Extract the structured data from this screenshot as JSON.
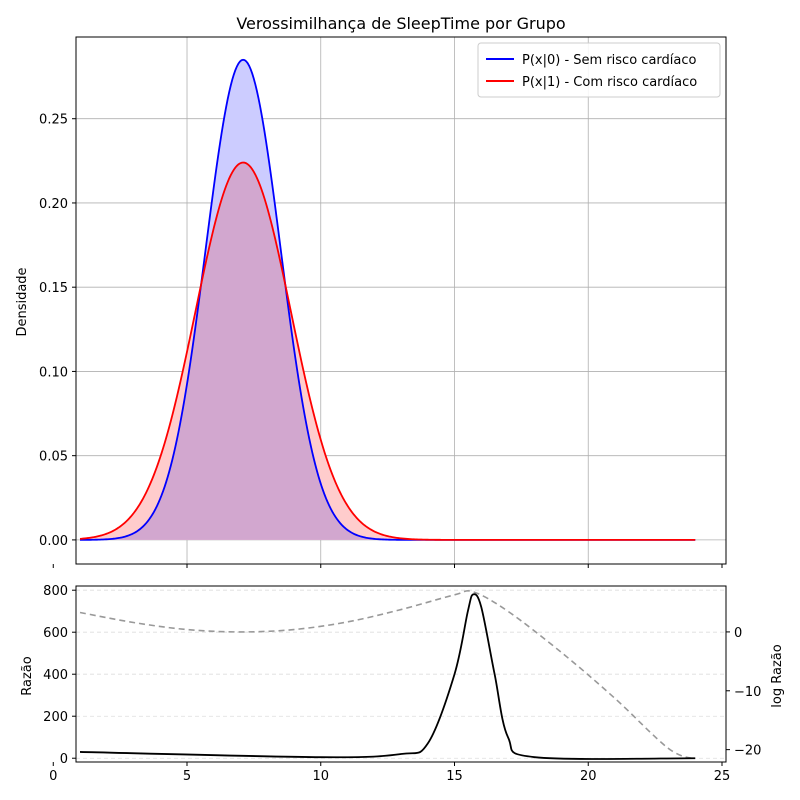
{
  "chart_data": [
    {
      "type": "area",
      "title": "Verossimilhança de SleepTime por Grupo",
      "xlabel": "",
      "ylabel": "Densidade",
      "xlim": [
        0.85,
        25.15
      ],
      "ylim": [
        -0.0143,
        0.2985
      ],
      "xticks": [
        0,
        5,
        10,
        15,
        20,
        25
      ],
      "xtick_labels": [
        "",
        "",
        "",
        "",
        "",
        ""
      ],
      "yticks": [
        0.0,
        0.05,
        0.1,
        0.15,
        0.2,
        0.25
      ],
      "ytick_labels": [
        "0.00",
        "0.05",
        "0.10",
        "0.15",
        "0.20",
        "0.25"
      ],
      "grid": true,
      "legend_position": "top-right",
      "x_range": [
        1,
        24
      ],
      "series": [
        {
          "name": "P(x|0) - Sem risco cardíaco",
          "distribution": "normal",
          "mean": 7.1,
          "std": 1.4,
          "peak": 0.285,
          "color": "#0000ff",
          "fill": "#ccccff"
        },
        {
          "name": "P(x|1) - Com risco cardíaco",
          "distribution": "normal",
          "mean": 7.1,
          "std": 1.78,
          "peak": 0.224,
          "color": "#ff0000",
          "fill": "#ffcccc"
        }
      ],
      "overlap_fill": "#d2a7cf"
    },
    {
      "type": "line",
      "xlabel": "",
      "ylabel": "Razão",
      "ylabel_right": "log Razão",
      "xlim": [
        0.85,
        25.15
      ],
      "ylim": [
        -18,
        820
      ],
      "ylim_right": [
        -22.1,
        7.8
      ],
      "xticks": [
        0,
        5,
        10,
        15,
        20,
        25
      ],
      "xtick_labels": [
        "0",
        "5",
        "10",
        "15",
        "20",
        "25"
      ],
      "yticks": [
        0,
        200,
        400,
        600,
        800
      ],
      "ytick_labels": [
        "0",
        "200",
        "400",
        "600",
        "800"
      ],
      "yticks_right": [
        0,
        -10,
        -20
      ],
      "ytick_labels_right": [
        "0",
        "−10",
        "−20"
      ],
      "grid": "horizontal-dashed",
      "series": [
        {
          "name": "",
          "axis": "left",
          "color": "#000000",
          "x": [
            1,
            10,
            13,
            14,
            15,
            15.5,
            15.7,
            16,
            16.5,
            17,
            18,
            24
          ],
          "y": [
            30,
            5,
            20,
            70,
            400,
            700,
            780,
            720,
            400,
            100,
            5,
            0
          ]
        },
        {
          "name": "",
          "axis": "right",
          "color": "#999999",
          "style": "dashed",
          "x": [
            1,
            3,
            5,
            7,
            9,
            11,
            13,
            15,
            15.7,
            17,
            19,
            21,
            23,
            24
          ],
          "y": [
            3.3,
            1.6,
            0.4,
            0.0,
            0.4,
            1.7,
            3.8,
            6.3,
            6.8,
            3.5,
            -3.5,
            -11.3,
            -19.8,
            -21.6
          ]
        }
      ]
    }
  ]
}
